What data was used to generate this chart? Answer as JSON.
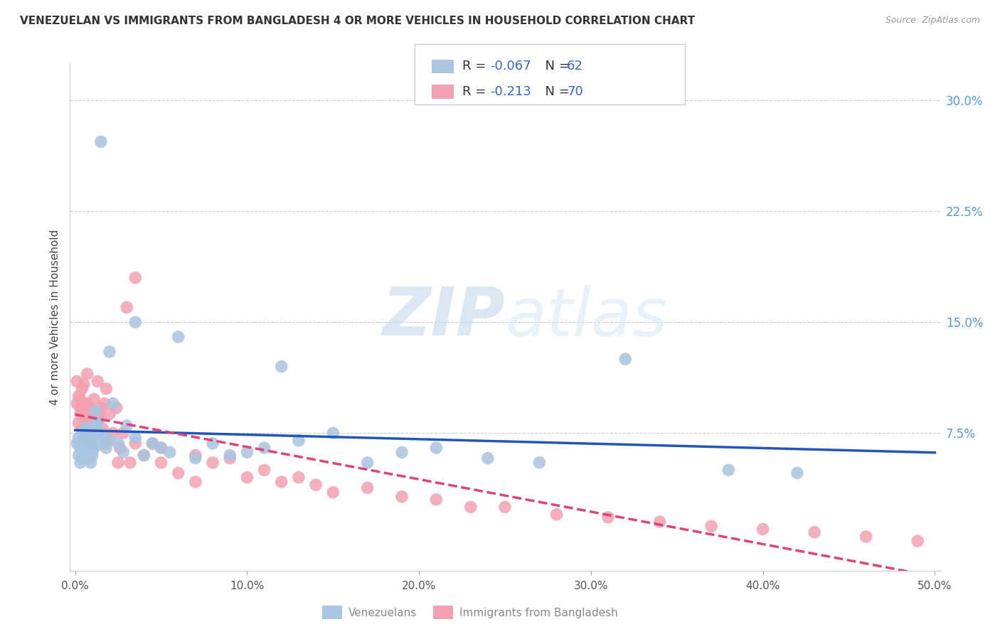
{
  "title": "VENEZUELAN VS IMMIGRANTS FROM BANGLADESH 4 OR MORE VEHICLES IN HOUSEHOLD CORRELATION CHART",
  "source": "Source: ZipAtlas.com",
  "ylabel": "4 or more Vehicles in Household",
  "xlim": [
    -0.003,
    0.503
  ],
  "ylim": [
    -0.018,
    0.325
  ],
  "xticks": [
    0.0,
    0.1,
    0.2,
    0.3,
    0.4,
    0.5
  ],
  "xtick_labels": [
    "0.0%",
    "10.0%",
    "20.0%",
    "30.0%",
    "40.0%",
    "50.0%"
  ],
  "yticks_right": [
    0.075,
    0.15,
    0.225,
    0.3
  ],
  "ytick_labels_right": [
    "7.5%",
    "15.0%",
    "22.5%",
    "30.0%"
  ],
  "R1": "-0.067",
  "N1": "62",
  "R2": "-0.213",
  "N2": "70",
  "venezuelan_color": "#a8c4e0",
  "bangladesh_color": "#f4a0b0",
  "trend_blue": "#2255bb",
  "trend_pink": "#dd4477",
  "watermark_zip": "ZIP",
  "watermark_atlas": "atlas",
  "legend_label1": "Venezuelans",
  "legend_label2": "Immigrants from Bangladesh",
  "ven_x": [
    0.001,
    0.002,
    0.002,
    0.003,
    0.003,
    0.004,
    0.004,
    0.005,
    0.005,
    0.006,
    0.006,
    0.007,
    0.007,
    0.008,
    0.008,
    0.009,
    0.009,
    0.01,
    0.01,
    0.011,
    0.011,
    0.012,
    0.013,
    0.014,
    0.015,
    0.016,
    0.018,
    0.02,
    0.022,
    0.025,
    0.028,
    0.03,
    0.035,
    0.04,
    0.045,
    0.05,
    0.055,
    0.06,
    0.07,
    0.08,
    0.09,
    0.1,
    0.11,
    0.12,
    0.13,
    0.15,
    0.17,
    0.19,
    0.21,
    0.24,
    0.27,
    0.32,
    0.38,
    0.42,
    0.003,
    0.006,
    0.01,
    0.015,
    0.008,
    0.012,
    0.02,
    0.035
  ],
  "ven_y": [
    0.068,
    0.072,
    0.06,
    0.065,
    0.055,
    0.07,
    0.058,
    0.068,
    0.075,
    0.062,
    0.078,
    0.058,
    0.072,
    0.065,
    0.06,
    0.068,
    0.055,
    0.072,
    0.06,
    0.078,
    0.065,
    0.09,
    0.082,
    0.075,
    0.068,
    0.073,
    0.065,
    0.07,
    0.095,
    0.068,
    0.062,
    0.08,
    0.072,
    0.06,
    0.068,
    0.065,
    0.062,
    0.14,
    0.058,
    0.068,
    0.06,
    0.062,
    0.065,
    0.12,
    0.07,
    0.075,
    0.055,
    0.062,
    0.065,
    0.058,
    0.055,
    0.125,
    0.05,
    0.048,
    0.068,
    0.058,
    0.063,
    0.272,
    0.058,
    0.082,
    0.13,
    0.15
  ],
  "ban_x": [
    0.001,
    0.001,
    0.002,
    0.002,
    0.003,
    0.003,
    0.004,
    0.004,
    0.005,
    0.005,
    0.006,
    0.006,
    0.007,
    0.008,
    0.008,
    0.009,
    0.01,
    0.01,
    0.011,
    0.012,
    0.013,
    0.014,
    0.015,
    0.016,
    0.017,
    0.018,
    0.02,
    0.022,
    0.024,
    0.026,
    0.028,
    0.03,
    0.032,
    0.035,
    0.04,
    0.045,
    0.05,
    0.06,
    0.07,
    0.08,
    0.09,
    0.1,
    0.11,
    0.12,
    0.13,
    0.14,
    0.15,
    0.17,
    0.19,
    0.21,
    0.23,
    0.25,
    0.28,
    0.31,
    0.34,
    0.37,
    0.4,
    0.43,
    0.46,
    0.49,
    0.003,
    0.005,
    0.007,
    0.01,
    0.014,
    0.018,
    0.025,
    0.035,
    0.05,
    0.07
  ],
  "ban_y": [
    0.11,
    0.095,
    0.1,
    0.082,
    0.098,
    0.088,
    0.105,
    0.078,
    0.095,
    0.085,
    0.088,
    0.075,
    0.095,
    0.085,
    0.092,
    0.07,
    0.088,
    0.078,
    0.098,
    0.082,
    0.11,
    0.085,
    0.092,
    0.078,
    0.095,
    0.105,
    0.088,
    0.075,
    0.092,
    0.065,
    0.075,
    0.16,
    0.055,
    0.068,
    0.06,
    0.068,
    0.065,
    0.048,
    0.06,
    0.055,
    0.058,
    0.045,
    0.05,
    0.042,
    0.045,
    0.04,
    0.035,
    0.038,
    0.032,
    0.03,
    0.025,
    0.025,
    0.02,
    0.018,
    0.015,
    0.012,
    0.01,
    0.008,
    0.005,
    0.002,
    0.092,
    0.108,
    0.115,
    0.075,
    0.088,
    0.068,
    0.055,
    0.18,
    0.055,
    0.042
  ]
}
